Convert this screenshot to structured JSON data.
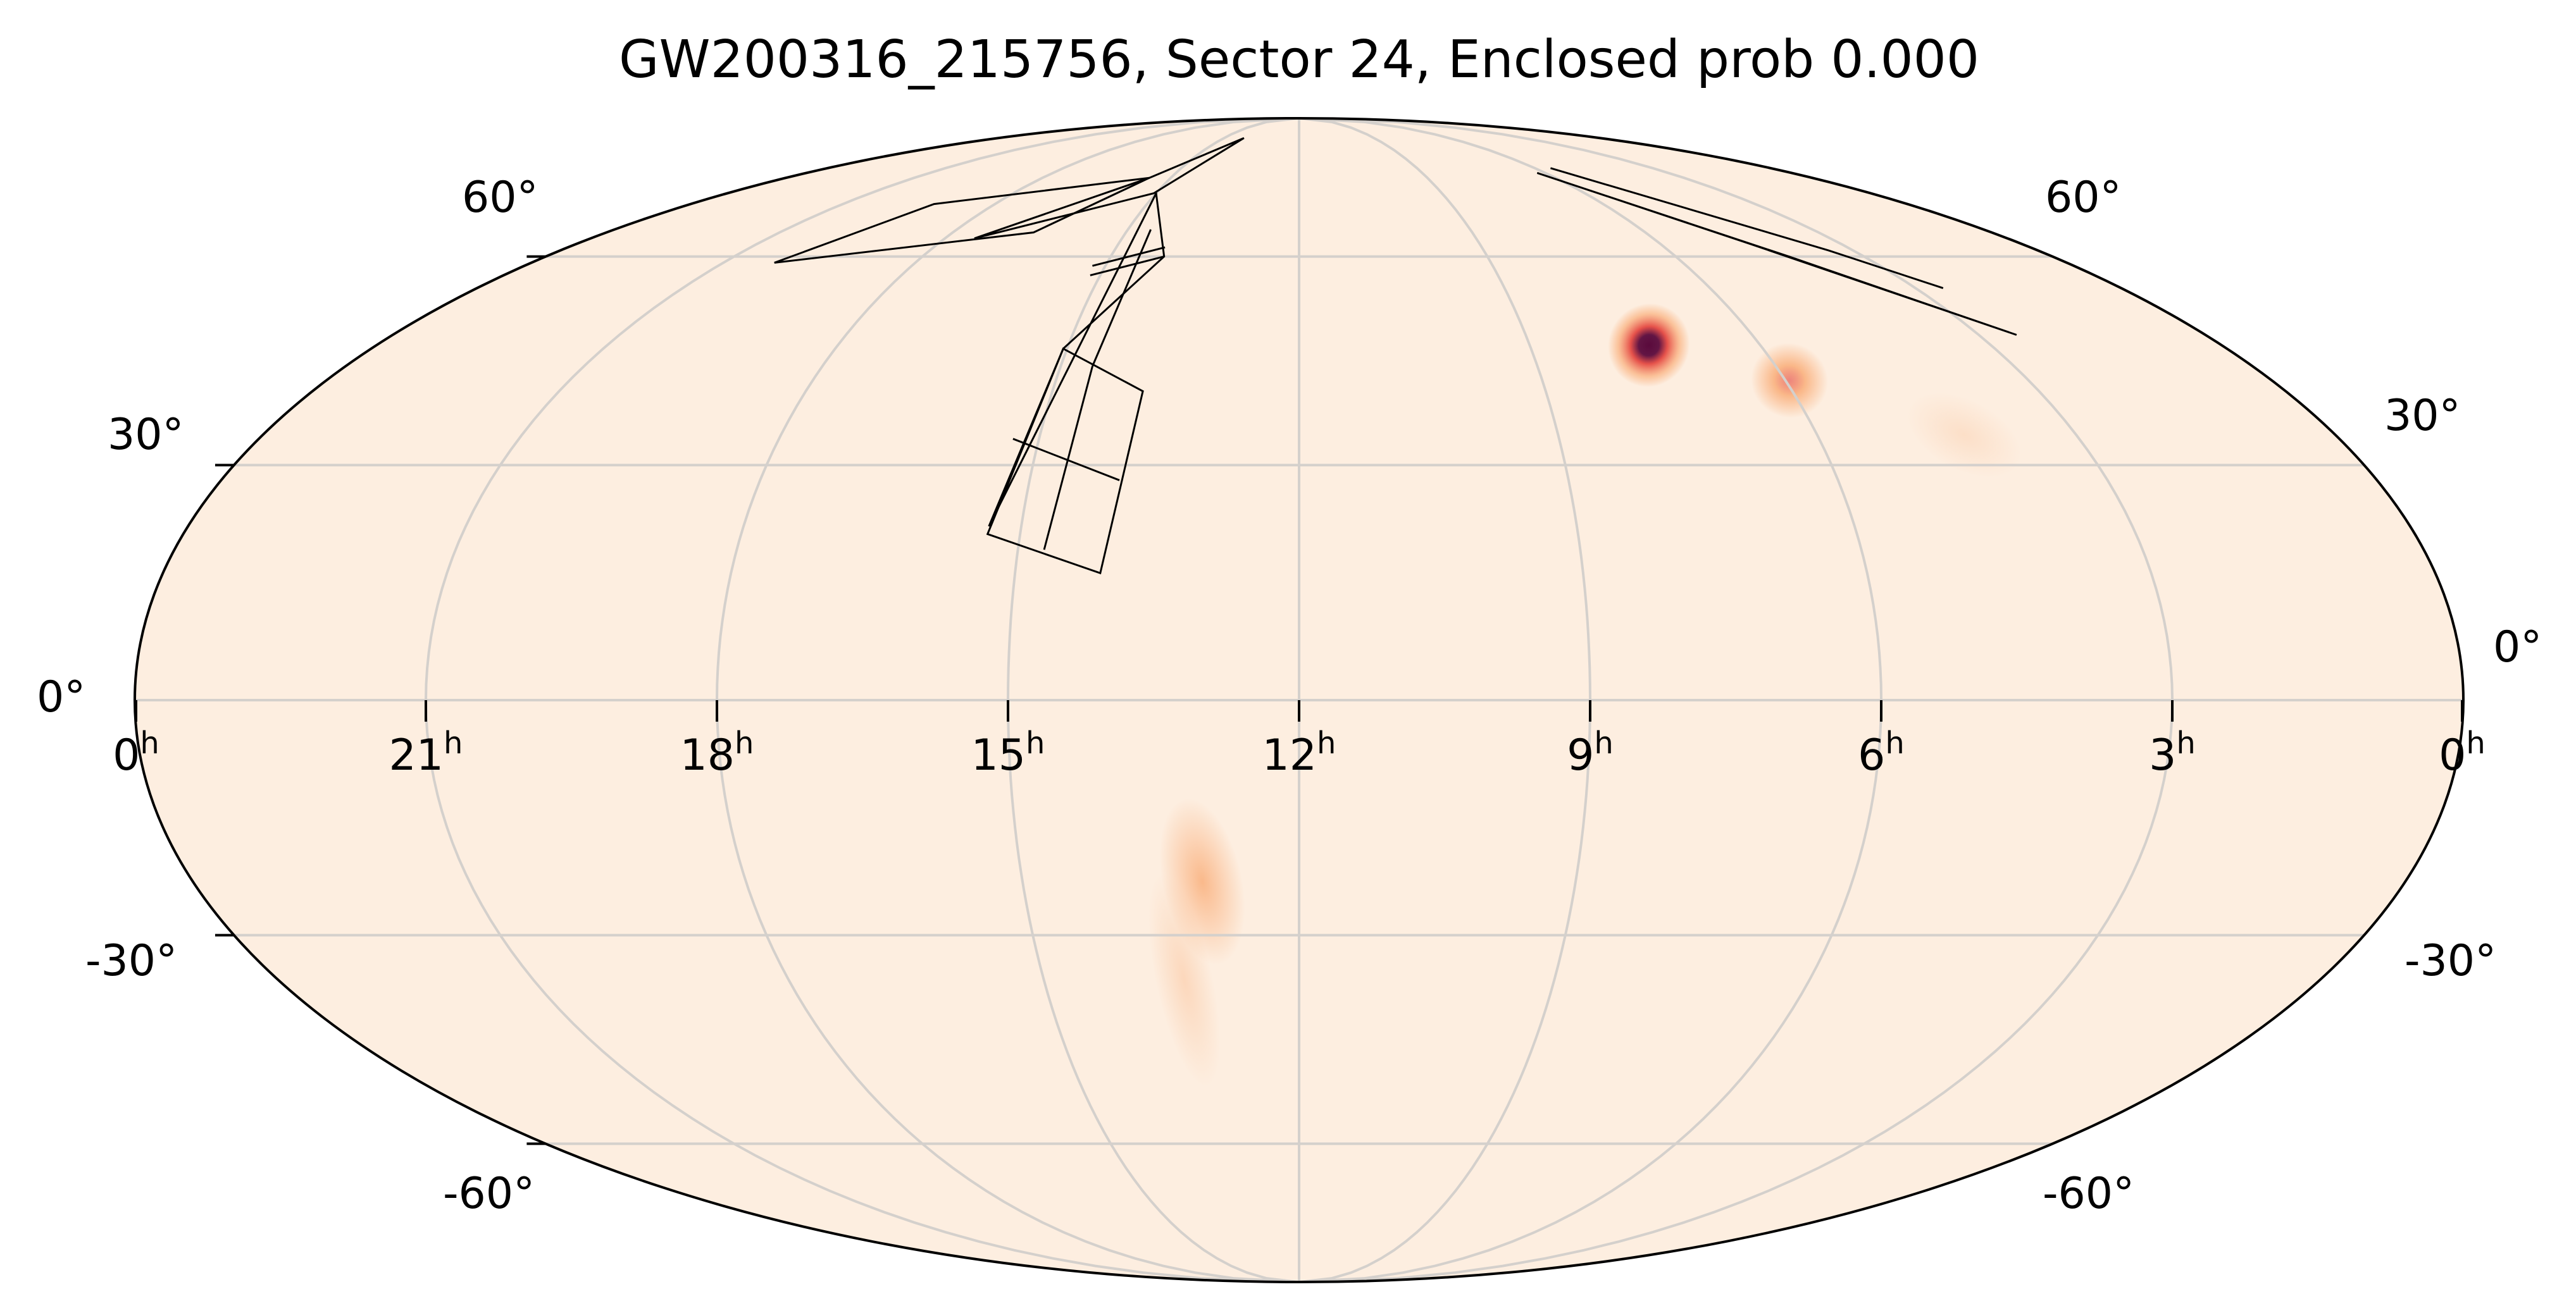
{
  "title": "GW200316_215756, Sector 24, Enclosed prob 0.000",
  "colors": {
    "background": "#fdeee0",
    "grid": "#d4d0cc",
    "outline": "#000000",
    "footprint": "#000000",
    "hotspot_core": "#5a0a3c",
    "hotspot_mid": "#e3403a",
    "hotspot_outer": "#f9a56b"
  },
  "map": {
    "projection": "mollweide",
    "ra_direction": "increasing to the left",
    "hour_labels": [
      {
        "ra_h": 24,
        "hour": "0",
        "sup": "h"
      },
      {
        "ra_h": 21,
        "hour": "21",
        "sup": "h"
      },
      {
        "ra_h": 18,
        "hour": "18",
        "sup": "h"
      },
      {
        "ra_h": 15,
        "hour": "15",
        "sup": "h"
      },
      {
        "ra_h": 12,
        "hour": "12",
        "sup": "h"
      },
      {
        "ra_h": 9,
        "hour": "9",
        "sup": "h"
      },
      {
        "ra_h": 6,
        "hour": "6",
        "sup": "h"
      },
      {
        "ra_h": 3,
        "hour": "3",
        "sup": "h"
      },
      {
        "ra_h": 0,
        "hour": "0",
        "sup": "h"
      }
    ],
    "dec_labels_left": [
      "60°",
      "30°",
      "0°",
      "-30°",
      "-60°"
    ],
    "dec_labels_right": [
      "60°",
      "30°",
      "0°",
      "-30°",
      "-60°"
    ],
    "dec_values": [
      60,
      30,
      0,
      -30,
      -60
    ],
    "meridians_h": [
      3,
      6,
      9,
      12,
      15,
      18,
      21
    ],
    "parallels_deg": [
      -60,
      -30,
      0,
      30,
      60
    ]
  },
  "probability_blobs": [
    {
      "ra_h": 7.45,
      "dec": 46.5,
      "peak": 1.0,
      "sigma_ra_h": 0.22,
      "sigma_dec": 2.6
    },
    {
      "ra_h": 5.95,
      "dec": 41.5,
      "peak": 0.5,
      "sigma_ra_h": 0.2,
      "sigma_dec": 2.2
    },
    {
      "ra_h": 4.3,
      "dec": 34,
      "peak": 0.08,
      "sigma_ra_h": 0.3,
      "sigma_dec": 2.0
    },
    {
      "ra_h": 13.05,
      "dec": -23,
      "peak": 0.28,
      "sigma_ra_h": 0.18,
      "sigma_dec": 4.5
    },
    {
      "ra_h": 13.35,
      "dec": -36,
      "peak": 0.12,
      "sigma_ra_h": 0.14,
      "sigma_dec": 6.0
    }
  ],
  "tess_footprint": {
    "sector": "24",
    "cameras": [
      [
        [
          15.35,
          21
        ],
        [
          14.1,
          16
        ],
        [
          13.9,
          40
        ],
        [
          15.05,
          46
        ]
      ],
      [
        [
          15.35,
          22
        ],
        [
          15.05,
          46
        ],
        [
          14.15,
          60
        ],
        [
          15.0,
          71
        ]
      ],
      [
        [
          17.5,
          63
        ],
        [
          15.05,
          71
        ],
        [
          14.2,
          83
        ],
        [
          15.5,
          74
        ]
      ],
      [
        [
          20.2,
          59
        ],
        [
          16.6,
          64
        ],
        [
          15.5,
          74
        ],
        [
          19.2,
          69
        ]
      ]
    ],
    "ccd_seams": [
      [
        [
          14.72,
          19.0
        ],
        [
          14.6,
          43.5
        ]
      ],
      [
        [
          14.0,
          28.0
        ],
        [
          15.3,
          33.5
        ]
      ],
      [
        [
          14.6,
          43.5
        ],
        [
          14.6,
          64.5
        ]
      ],
      [
        [
          15.15,
          57
        ],
        [
          14.15,
          60
        ]
      ],
      [
        [
          15.2,
          58.5
        ],
        [
          14.2,
          61.5
        ]
      ]
    ],
    "ne_strip": [
      [
        6.2,
        75
      ],
      [
        4.5,
        62
      ],
      [
        2.5,
        48
      ],
      [
        4.2,
        60
      ],
      [
        6.2,
        75
      ]
    ],
    "ne_strip_b": [
      [
        5.6,
        76
      ],
      [
        3.4,
        61
      ],
      [
        2.6,
        55
      ]
    ]
  }
}
